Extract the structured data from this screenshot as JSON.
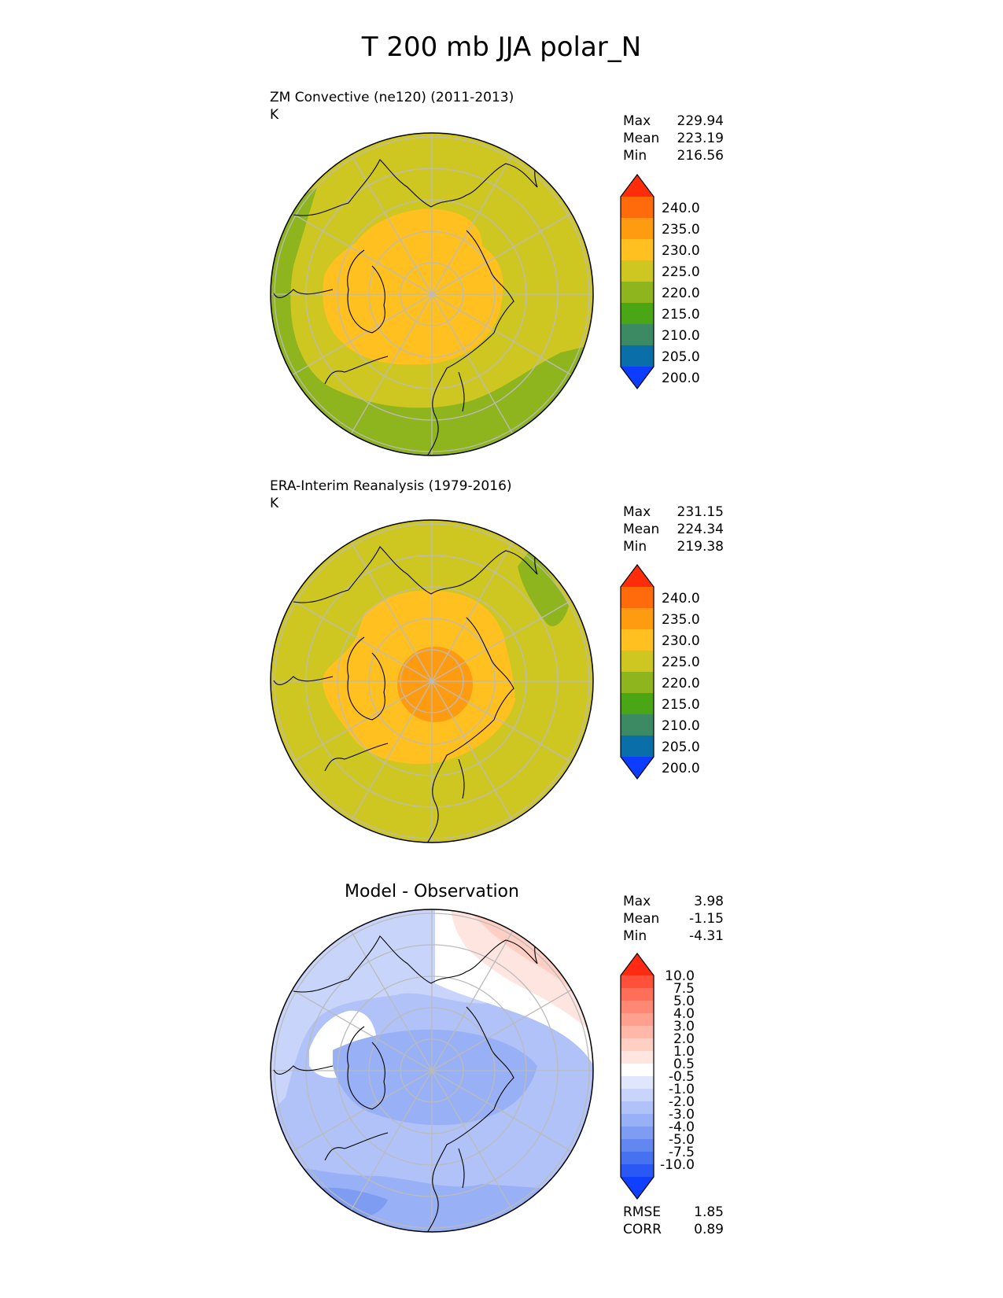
{
  "title": "T 200 mb JJA polar_N",
  "colors": {
    "abs_levels": [
      "#0b3cff",
      "#0a6ea8",
      "#3c8a63",
      "#4aa614",
      "#8fb51e",
      "#cfc721",
      "#ffc020",
      "#ff9b10",
      "#ff6a0a",
      "#ff2c0a"
    ],
    "diff_levels": [
      "#1040ff",
      "#2a58f5",
      "#4672f0",
      "#6288f0",
      "#7e9df2",
      "#98b0f5",
      "#b0c2f7",
      "#c8d4fa",
      "#e0e7fc",
      "#ffffff",
      "#ffe5e0",
      "#ffcfc4",
      "#ffb7a8",
      "#ffa08e",
      "#ff8874",
      "#ff6e58",
      "#ff503a",
      "#ff2a12"
    ]
  },
  "panels": [
    {
      "title": "ZM Convective (ne120) (2011-2013)",
      "units": "K",
      "stats": [
        {
          "label": "Max",
          "value": "229.94"
        },
        {
          "label": "Mean",
          "value": "223.19"
        },
        {
          "label": "Min",
          "value": "216.56"
        }
      ],
      "colorbar_labels": [
        "240.0",
        "235.0",
        "230.0",
        "225.0",
        "220.0",
        "215.0",
        "210.0",
        "205.0",
        "200.0"
      ]
    },
    {
      "title": "ERA-Interim Reanalysis (1979-2016)",
      "units": "K",
      "stats": [
        {
          "label": "Max",
          "value": "231.15"
        },
        {
          "label": "Mean",
          "value": "224.34"
        },
        {
          "label": "Min",
          "value": "219.38"
        }
      ],
      "colorbar_labels": [
        "240.0",
        "235.0",
        "230.0",
        "225.0",
        "220.0",
        "215.0",
        "210.0",
        "205.0",
        "200.0"
      ]
    },
    {
      "title": "Model - Observation",
      "stats": [
        {
          "label": "Max",
          "value": "3.98"
        },
        {
          "label": "Mean",
          "value": "-1.15"
        },
        {
          "label": "Min",
          "value": "-4.31"
        }
      ],
      "colorbar_labels": [
        "10.0",
        "7.5",
        "5.0",
        "4.0",
        "3.0",
        "2.0",
        "1.0",
        "0.5",
        "-0.5",
        "-1.0",
        "-2.0",
        "-3.0",
        "-4.0",
        "-5.0",
        "-7.5",
        "-10.0"
      ],
      "metrics": [
        {
          "label": "RMSE",
          "value": "1.85"
        },
        {
          "label": "CORR",
          "value": "0.89"
        }
      ]
    }
  ],
  "chart_data": [
    {
      "type": "heatmap",
      "projection": "north polar stereographic",
      "title": "ZM Convective (ne120) (2011-2013)",
      "units": "K",
      "contour_levels": [
        200,
        205,
        210,
        215,
        220,
        225,
        230,
        235,
        240
      ],
      "extend": "both",
      "field_bands": [
        {
          "range": [
            225,
            230
          ],
          "region": "central Arctic, poleward of ~65N"
        },
        {
          "range": [
            220,
            225
          ],
          "region": "outer ring"
        },
        {
          "range": [
            215,
            220
          ],
          "region": "lower-latitude margins (bottom and left edges)"
        }
      ],
      "max": 229.94,
      "mean": 223.19,
      "min": 216.56
    },
    {
      "type": "heatmap",
      "projection": "north polar stereographic",
      "title": "ERA-Interim Reanalysis (1979-2016)",
      "units": "K",
      "contour_levels": [
        200,
        205,
        210,
        215,
        220,
        225,
        230,
        235,
        240
      ],
      "extend": "both",
      "field_bands": [
        {
          "range": [
            230,
            235
          ],
          "region": "pole"
        },
        {
          "range": [
            225,
            230
          ],
          "region": "central Arctic"
        },
        {
          "range": [
            220,
            225
          ],
          "region": "outer ring"
        },
        {
          "range": [
            215,
            220
          ],
          "region": "small patch at upper-right edge"
        }
      ],
      "max": 231.15,
      "mean": 224.34,
      "min": 219.38
    },
    {
      "type": "heatmap",
      "projection": "north polar stereographic",
      "title": "Model - Observation",
      "contour_levels": [
        -10,
        -7.5,
        -5,
        -4,
        -3,
        -2,
        -1,
        -0.5,
        0.5,
        1,
        2,
        3,
        4,
        5,
        7.5,
        10
      ],
      "extend": "both",
      "field_bands": [
        {
          "range": [
            1,
            4
          ],
          "region": "upper-right sector (positive)"
        },
        {
          "range": [
            -0.5,
            0.5
          ],
          "region": "band across upper-right and left"
        },
        {
          "range": [
            -3,
            -1
          ],
          "region": "central and lower area"
        },
        {
          "range": [
            -5,
            -3
          ],
          "region": "lower-left edge minimum"
        }
      ],
      "max": 3.98,
      "mean": -1.15,
      "min": -4.31,
      "rmse": 1.85,
      "corr": 0.89
    }
  ]
}
